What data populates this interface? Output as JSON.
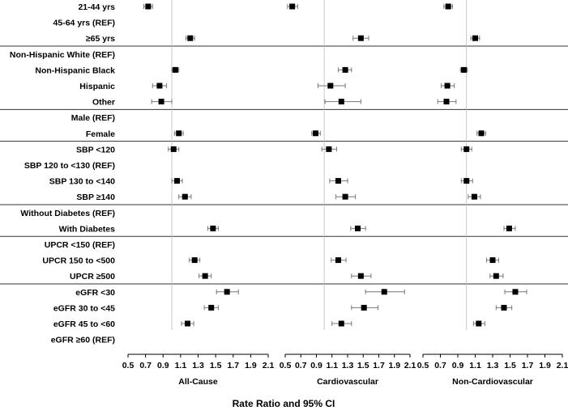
{
  "chart_data": {
    "type": "forest",
    "xlabel": "Rate Ratio and 95% CI",
    "xlim": [
      0.5,
      2.1
    ],
    "xticks": [
      "0.5",
      "0.7",
      "0.9",
      "1.1",
      "1.3",
      "1.5",
      "1.7",
      "1.9",
      "2.1"
    ],
    "reference_line": 1.0,
    "rows": [
      "21-44 yrs",
      "45-64 yrs (REF)",
      "≥65 yrs",
      "Non-Hispanic White (REF)",
      "Non-Hispanic Black",
      "Hispanic",
      "Other",
      "Male (REF)",
      "Female",
      "SBP <120",
      "SBP 120 to <130 (REF)",
      "SBP 130 to <140",
      "SBP ≥140",
      "Without Diabetes (REF)",
      "With Diabetes",
      "UPCR <150 (REF)",
      "UPCR 150 to <500",
      "UPCR ≥500",
      "eGFR <30",
      "eGFR 30 to <45",
      "eGFR 45 to <60",
      "eGFR ≥60 (REF)"
    ],
    "panels": [
      {
        "title": "All-Cause",
        "estimates": [
          [
            0.73,
            0.68,
            0.78
          ],
          null,
          [
            1.21,
            1.16,
            1.26
          ],
          null,
          [
            1.04,
            1.0,
            1.08
          ],
          [
            0.86,
            0.78,
            0.94
          ],
          [
            0.88,
            0.77,
            1.0
          ],
          null,
          [
            1.08,
            1.03,
            1.13
          ],
          [
            1.02,
            0.96,
            1.08
          ],
          null,
          [
            1.06,
            1.0,
            1.12
          ],
          [
            1.15,
            1.08,
            1.22
          ],
          null,
          [
            1.47,
            1.41,
            1.53
          ],
          null,
          [
            1.26,
            1.2,
            1.32
          ],
          [
            1.38,
            1.31,
            1.45
          ],
          [
            1.63,
            1.51,
            1.76
          ],
          [
            1.45,
            1.37,
            1.53
          ],
          [
            1.18,
            1.11,
            1.25
          ],
          null
        ]
      },
      {
        "title": "Cardiovascular",
        "estimates": [
          [
            0.59,
            0.53,
            0.66
          ],
          null,
          [
            1.47,
            1.37,
            1.57
          ],
          null,
          [
            1.27,
            1.18,
            1.35
          ],
          [
            1.08,
            0.92,
            1.27
          ],
          [
            1.22,
            1.01,
            1.47
          ],
          null,
          [
            0.89,
            0.84,
            0.95
          ],
          [
            1.06,
            0.97,
            1.16
          ],
          null,
          [
            1.18,
            1.07,
            1.3
          ],
          [
            1.27,
            1.15,
            1.4
          ],
          null,
          [
            1.43,
            1.34,
            1.53
          ],
          null,
          [
            1.18,
            1.09,
            1.28
          ],
          [
            1.47,
            1.35,
            1.6
          ],
          [
            1.77,
            1.53,
            2.03
          ],
          [
            1.51,
            1.35,
            1.69
          ],
          [
            1.22,
            1.1,
            1.35
          ],
          null
        ]
      },
      {
        "title": "Non-Cardiovascular",
        "estimates": [
          [
            0.79,
            0.74,
            0.84
          ],
          null,
          [
            1.1,
            1.05,
            1.15
          ],
          null,
          [
            0.97,
            0.93,
            1.01
          ],
          [
            0.78,
            0.71,
            0.86
          ],
          [
            0.77,
            0.67,
            0.88
          ],
          null,
          [
            1.17,
            1.12,
            1.22
          ],
          [
            1.0,
            0.94,
            1.06
          ],
          null,
          [
            1.0,
            0.94,
            1.07
          ],
          [
            1.09,
            1.02,
            1.16
          ],
          null,
          [
            1.49,
            1.43,
            1.56
          ],
          null,
          [
            1.3,
            1.23,
            1.37
          ],
          [
            1.34,
            1.27,
            1.42
          ],
          [
            1.56,
            1.44,
            1.69
          ],
          [
            1.43,
            1.34,
            1.52
          ],
          [
            1.14,
            1.08,
            1.21
          ],
          null
        ]
      }
    ]
  }
}
